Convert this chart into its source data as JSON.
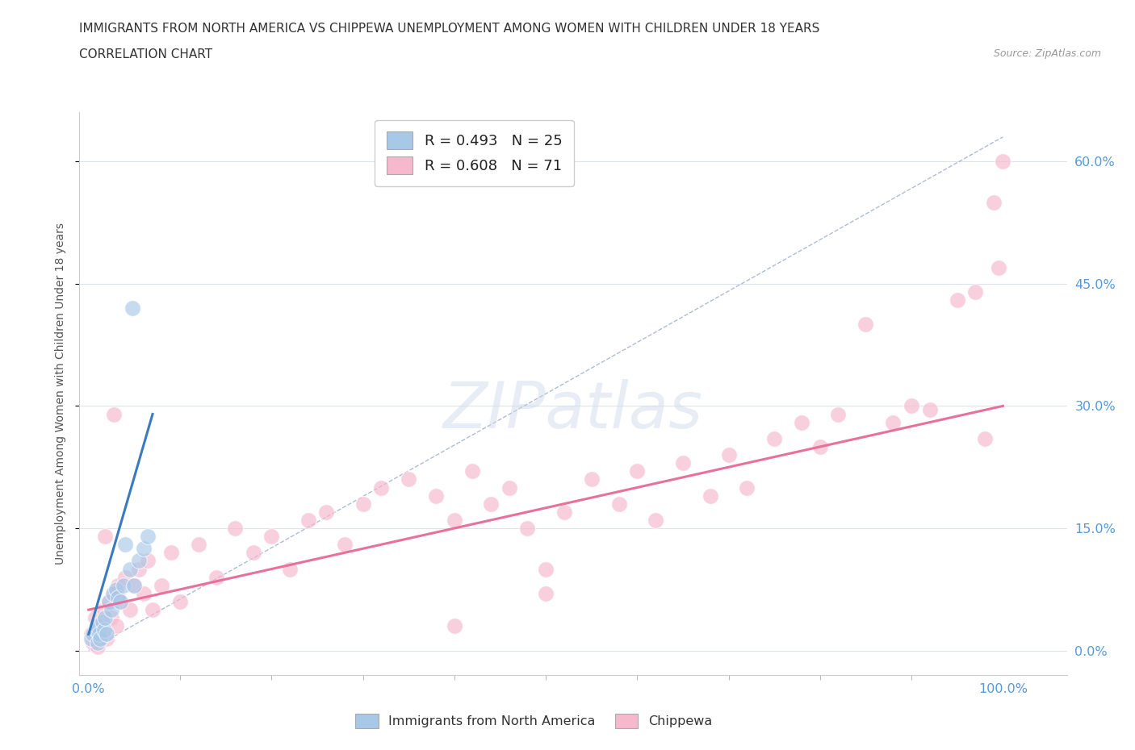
{
  "title_line1": "IMMIGRANTS FROM NORTH AMERICA VS CHIPPEWA UNEMPLOYMENT AMONG WOMEN WITH CHILDREN UNDER 18 YEARS",
  "title_line2": "CORRELATION CHART",
  "source_text": "Source: ZipAtlas.com",
  "ylabel": "Unemployment Among Women with Children Under 18 years",
  "watermark": "ZIPatlas",
  "legend_entry_blue": "R = 0.493   N = 25",
  "legend_entry_pink": "R = 0.608   N = 71",
  "legend_label_blue": "Immigrants from North America",
  "legend_label_pink": "Chippewa",
  "blue_scatter": [
    [
      0.3,
      1.5
    ],
    [
      0.5,
      2.0
    ],
    [
      0.8,
      2.5
    ],
    [
      0.9,
      3.0
    ],
    [
      1.0,
      1.0
    ],
    [
      1.2,
      2.0
    ],
    [
      1.3,
      1.5
    ],
    [
      1.5,
      3.5
    ],
    [
      1.7,
      2.5
    ],
    [
      1.8,
      4.0
    ],
    [
      2.0,
      2.0
    ],
    [
      2.2,
      6.0
    ],
    [
      2.5,
      5.0
    ],
    [
      2.7,
      7.0
    ],
    [
      3.0,
      7.5
    ],
    [
      3.2,
      6.5
    ],
    [
      3.5,
      6.0
    ],
    [
      3.8,
      8.0
    ],
    [
      4.0,
      13.0
    ],
    [
      4.5,
      10.0
    ],
    [
      5.0,
      8.0
    ],
    [
      5.5,
      11.0
    ],
    [
      6.0,
      12.5
    ],
    [
      6.5,
      14.0
    ],
    [
      4.8,
      42.0
    ]
  ],
  "pink_scatter": [
    [
      0.3,
      2.0
    ],
    [
      0.5,
      1.0
    ],
    [
      0.7,
      4.0
    ],
    [
      0.9,
      2.5
    ],
    [
      1.0,
      0.5
    ],
    [
      1.2,
      3.0
    ],
    [
      1.5,
      2.0
    ],
    [
      1.7,
      5.0
    ],
    [
      2.0,
      1.5
    ],
    [
      2.2,
      6.0
    ],
    [
      2.5,
      4.0
    ],
    [
      2.8,
      7.0
    ],
    [
      3.0,
      3.0
    ],
    [
      3.2,
      8.0
    ],
    [
      3.5,
      6.0
    ],
    [
      4.0,
      9.0
    ],
    [
      4.5,
      5.0
    ],
    [
      5.0,
      8.0
    ],
    [
      5.5,
      10.0
    ],
    [
      6.0,
      7.0
    ],
    [
      6.5,
      11.0
    ],
    [
      7.0,
      5.0
    ],
    [
      8.0,
      8.0
    ],
    [
      9.0,
      12.0
    ],
    [
      10.0,
      6.0
    ],
    [
      12.0,
      13.0
    ],
    [
      14.0,
      9.0
    ],
    [
      16.0,
      15.0
    ],
    [
      18.0,
      12.0
    ],
    [
      20.0,
      14.0
    ],
    [
      22.0,
      10.0
    ],
    [
      24.0,
      16.0
    ],
    [
      26.0,
      17.0
    ],
    [
      28.0,
      13.0
    ],
    [
      30.0,
      18.0
    ],
    [
      32.0,
      20.0
    ],
    [
      35.0,
      21.0
    ],
    [
      38.0,
      19.0
    ],
    [
      40.0,
      16.0
    ],
    [
      42.0,
      22.0
    ],
    [
      44.0,
      18.0
    ],
    [
      46.0,
      20.0
    ],
    [
      48.0,
      15.0
    ],
    [
      50.0,
      10.0
    ],
    [
      52.0,
      17.0
    ],
    [
      55.0,
      21.0
    ],
    [
      58.0,
      18.0
    ],
    [
      60.0,
      22.0
    ],
    [
      62.0,
      16.0
    ],
    [
      65.0,
      23.0
    ],
    [
      68.0,
      19.0
    ],
    [
      70.0,
      24.0
    ],
    [
      72.0,
      20.0
    ],
    [
      75.0,
      26.0
    ],
    [
      78.0,
      28.0
    ],
    [
      80.0,
      25.0
    ],
    [
      82.0,
      29.0
    ],
    [
      85.0,
      40.0
    ],
    [
      88.0,
      28.0
    ],
    [
      90.0,
      30.0
    ],
    [
      92.0,
      29.5
    ],
    [
      95.0,
      43.0
    ],
    [
      97.0,
      44.0
    ],
    [
      98.0,
      26.0
    ],
    [
      99.0,
      55.0
    ],
    [
      99.5,
      47.0
    ],
    [
      100.0,
      60.0
    ],
    [
      50.0,
      7.0
    ],
    [
      40.0,
      3.0
    ],
    [
      1.8,
      14.0
    ],
    [
      2.8,
      29.0
    ]
  ],
  "blue_line_x": [
    0.0,
    7.0
  ],
  "blue_line_y": [
    2.0,
    29.0
  ],
  "pink_line_x": [
    0.0,
    100.0
  ],
  "pink_line_y": [
    5.0,
    30.0
  ],
  "diag_line_x": [
    0.0,
    100.0
  ],
  "diag_line_y": [
    0.0,
    63.0
  ],
  "xlim": [
    -1,
    107
  ],
  "ylim": [
    -3,
    66
  ],
  "yticks": [
    0,
    15,
    30,
    45,
    60
  ],
  "ytick_labels": [
    "0.0%",
    "15.0%",
    "30.0%",
    "45.0%",
    "60.0%"
  ],
  "xticks": [
    0,
    100
  ],
  "xtick_labels": [
    "0.0%",
    "100.0%"
  ],
  "blue_color": "#a8c8e8",
  "pink_color": "#f5b8cc",
  "blue_line_color": "#3a7abf",
  "pink_line_color": "#e8709a",
  "diag_line_color": "#b0bcd0",
  "background_color": "#ffffff",
  "grid_color": "#dde3ec",
  "title_fontsize": 11,
  "subtitle_fontsize": 11,
  "marker_size": 200,
  "marker_alpha": 0.65
}
